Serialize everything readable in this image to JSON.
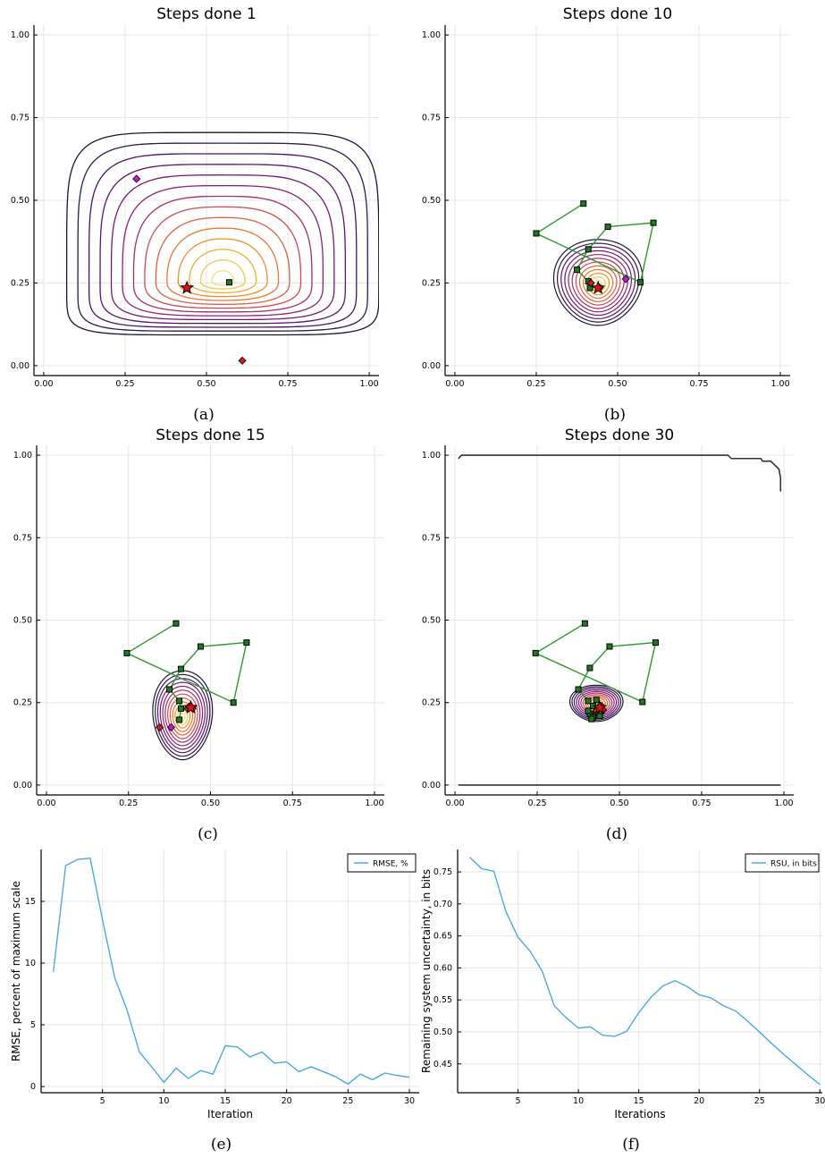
{
  "chart_data": [
    {
      "id": "a",
      "type": "contour",
      "title": "Steps done 1",
      "caption": "(a)",
      "xlim": [
        -0.03,
        1.03
      ],
      "ylim": [
        -0.03,
        1.03
      ],
      "xticks": [
        "0.00",
        "0.25",
        "0.50",
        "0.75",
        "1.00"
      ],
      "yticks": [
        "0.00",
        "0.25",
        "0.50",
        "0.75",
        "1.00"
      ],
      "grid": true,
      "contour": {
        "cx": 0.55,
        "cy": 0.255,
        "rx": 0.47,
        "ry": 0.36,
        "outer": 0.485,
        "n": 14,
        "shape": "box"
      },
      "path": [],
      "green_markers": [
        [
          0.57,
          0.252
        ]
      ],
      "red_diamonds": [
        [
          0.61,
          0.015
        ]
      ],
      "magenta_diamonds": [
        [
          0.285,
          0.565
        ]
      ],
      "star": [
        0.44,
        0.235
      ]
    },
    {
      "id": "b",
      "type": "contour",
      "title": "Steps done 10",
      "caption": "(b)",
      "xlim": [
        -0.03,
        1.03
      ],
      "ylim": [
        -0.03,
        1.03
      ],
      "xticks": [
        "0.00",
        "0.25",
        "0.50",
        "0.75",
        "1.00"
      ],
      "yticks": [
        "0.00",
        "0.25",
        "0.50",
        "0.75",
        "1.00"
      ],
      "grid": true,
      "contour": {
        "cx": 0.44,
        "cy": 0.245,
        "rx": 0.135,
        "ry": 0.13,
        "outer": 0.135,
        "n": 12,
        "shape": "drop"
      },
      "path": [
        [
          0.395,
          0.49
        ],
        [
          0.25,
          0.4
        ],
        [
          0.57,
          0.252
        ],
        [
          0.61,
          0.432
        ],
        [
          0.47,
          0.42
        ],
        [
          0.41,
          0.352
        ],
        [
          0.375,
          0.29
        ],
        [
          0.41,
          0.255
        ],
        [
          0.415,
          0.235
        ]
      ],
      "green_markers": [
        [
          0.395,
          0.49
        ],
        [
          0.25,
          0.4
        ],
        [
          0.57,
          0.252
        ],
        [
          0.61,
          0.432
        ],
        [
          0.47,
          0.42
        ],
        [
          0.41,
          0.352
        ],
        [
          0.375,
          0.29
        ],
        [
          0.41,
          0.255
        ],
        [
          0.415,
          0.235
        ]
      ],
      "red_diamonds": [
        [
          0.418,
          0.25
        ],
        [
          0.445,
          0.236
        ]
      ],
      "magenta_diamonds": [
        [
          0.525,
          0.262
        ]
      ],
      "star": [
        0.44,
        0.235
      ]
    },
    {
      "id": "c",
      "type": "contour",
      "title": "Steps done 15",
      "caption": "(c)",
      "xlim": [
        -0.03,
        1.03
      ],
      "ylim": [
        -0.03,
        1.03
      ],
      "xticks": [
        "0.00",
        "0.25",
        "0.50",
        "0.75",
        "1.00"
      ],
      "yticks": [
        "0.00",
        "0.25",
        "0.50",
        "0.75",
        "1.00"
      ],
      "grid": true,
      "contour": {
        "cx": 0.415,
        "cy": 0.205,
        "rx": 0.09,
        "ry": 0.135,
        "outer": 0.09,
        "n": 12,
        "shape": "drop"
      },
      "path": [
        [
          0.395,
          0.49
        ],
        [
          0.245,
          0.4
        ],
        [
          0.57,
          0.25
        ],
        [
          0.61,
          0.432
        ],
        [
          0.47,
          0.42
        ],
        [
          0.41,
          0.352
        ],
        [
          0.375,
          0.29
        ],
        [
          0.405,
          0.255
        ],
        [
          0.41,
          0.232
        ],
        [
          0.405,
          0.198
        ]
      ],
      "green_markers": [
        [
          0.395,
          0.49
        ],
        [
          0.245,
          0.4
        ],
        [
          0.57,
          0.25
        ],
        [
          0.61,
          0.432
        ],
        [
          0.47,
          0.42
        ],
        [
          0.41,
          0.352
        ],
        [
          0.375,
          0.29
        ],
        [
          0.405,
          0.255
        ],
        [
          0.41,
          0.232
        ],
        [
          0.405,
          0.198
        ]
      ],
      "red_diamonds": [
        [
          0.345,
          0.175
        ],
        [
          0.43,
          0.232
        ],
        [
          0.445,
          0.232
        ],
        [
          0.435,
          0.238
        ]
      ],
      "magenta_diamonds": [
        [
          0.38,
          0.175
        ]
      ],
      "star": [
        0.44,
        0.235
      ]
    },
    {
      "id": "d",
      "type": "contour",
      "title": "Steps done 30",
      "caption": "(d)",
      "xlim": [
        -0.03,
        1.03
      ],
      "ylim": [
        -0.03,
        1.03
      ],
      "xticks": [
        "0.00",
        "0.25",
        "0.50",
        "0.75",
        "1.00"
      ],
      "yticks": [
        "0.00",
        "0.25",
        "0.50",
        "0.75",
        "1.00"
      ],
      "grid": true,
      "contour": {
        "cx": 0.43,
        "cy": 0.245,
        "rx": 0.08,
        "ry": 0.055,
        "outer": 0.085,
        "n": 12,
        "shape": "drop"
      },
      "boundary": {
        "top": [
          [
            0.01,
            0.99
          ],
          [
            0.02,
            1.0
          ],
          [
            0.83,
            1.0
          ],
          [
            0.84,
            0.99
          ],
          [
            0.93,
            0.99
          ],
          [
            0.935,
            0.982
          ],
          [
            0.96,
            0.982
          ],
          [
            0.985,
            0.958
          ],
          [
            0.99,
            0.932
          ],
          [
            0.99,
            0.89
          ]
        ],
        "bottom": [
          [
            0.01,
            0.0
          ],
          [
            0.99,
            0.0
          ]
        ]
      },
      "path": [
        [
          0.395,
          0.49
        ],
        [
          0.245,
          0.4
        ],
        [
          0.57,
          0.252
        ],
        [
          0.61,
          0.432
        ],
        [
          0.47,
          0.42
        ],
        [
          0.41,
          0.355
        ],
        [
          0.375,
          0.29
        ],
        [
          0.405,
          0.255
        ],
        [
          0.42,
          0.24
        ],
        [
          0.43,
          0.22
        ],
        [
          0.41,
          0.215
        ]
      ],
      "green_markers": [
        [
          0.395,
          0.49
        ],
        [
          0.245,
          0.4
        ],
        [
          0.57,
          0.252
        ],
        [
          0.61,
          0.432
        ],
        [
          0.47,
          0.42
        ],
        [
          0.41,
          0.355
        ],
        [
          0.375,
          0.29
        ],
        [
          0.405,
          0.255
        ],
        [
          0.42,
          0.24
        ],
        [
          0.43,
          0.22
        ],
        [
          0.41,
          0.215
        ],
        [
          0.42,
          0.205
        ],
        [
          0.44,
          0.21
        ],
        [
          0.445,
          0.225
        ],
        [
          0.405,
          0.225
        ],
        [
          0.43,
          0.258
        ],
        [
          0.415,
          0.2
        ]
      ],
      "red_diamonds": [
        [
          0.435,
          0.235
        ],
        [
          0.445,
          0.24
        ],
        [
          0.43,
          0.225
        ],
        [
          0.45,
          0.228
        ]
      ],
      "magenta_diamonds": [],
      "star": [
        0.44,
        0.235
      ]
    },
    {
      "id": "e",
      "type": "line",
      "caption": "(e)",
      "xlabel": "Iteration",
      "ylabel": "RMSE, percent of maximum scale",
      "xlim": [
        0,
        30.8
      ],
      "ylim": [
        -0.5,
        19.2
      ],
      "xticks": [
        5,
        10,
        15,
        20,
        25,
        30
      ],
      "yticks": [
        0,
        5,
        10,
        15
      ],
      "grid": true,
      "legend": "top-right",
      "series": [
        {
          "name": "RMSE, %",
          "color": "#3da5e0",
          "x": [
            1,
            2,
            3,
            4,
            5,
            6,
            7,
            8,
            9,
            10,
            11,
            12,
            13,
            14,
            15,
            16,
            17,
            18,
            19,
            20,
            21,
            22,
            23,
            24,
            25,
            26,
            27,
            28,
            29,
            30
          ],
          "values": [
            9.3,
            17.9,
            18.4,
            18.5,
            13.5,
            8.8,
            6.2,
            2.8,
            1.6,
            0.35,
            1.5,
            0.65,
            1.3,
            1.0,
            3.3,
            3.2,
            2.4,
            2.8,
            1.9,
            2.0,
            1.2,
            1.6,
            1.2,
            0.8,
            0.2,
            1.0,
            0.55,
            1.1,
            0.9,
            0.75
          ]
        }
      ]
    },
    {
      "id": "f",
      "type": "line",
      "caption": "(f)",
      "xlabel": "Iterations",
      "ylabel": "Remaining system uncertainty, in bits",
      "xlim": [
        0,
        30.2
      ],
      "ylim": [
        0.405,
        0.785
      ],
      "xticks": [
        5,
        10,
        15,
        20,
        25,
        30
      ],
      "yticks": [
        0.45,
        0.5,
        0.55,
        0.6,
        0.65,
        0.7,
        0.75
      ],
      "grid": true,
      "legend": "top-right",
      "series": [
        {
          "name": "RSU, in bits",
          "color": "#3da5e0",
          "x": [
            1,
            2,
            3,
            4,
            5,
            6,
            7,
            8,
            9,
            10,
            11,
            12,
            13,
            14,
            15,
            16,
            17,
            18,
            19,
            20,
            21,
            22,
            23,
            24,
            25,
            26,
            27,
            28,
            29,
            30
          ],
          "values": [
            0.773,
            0.755,
            0.751,
            0.688,
            0.648,
            0.626,
            0.595,
            0.541,
            0.522,
            0.506,
            0.508,
            0.495,
            0.493,
            0.501,
            0.53,
            0.554,
            0.572,
            0.58,
            0.571,
            0.558,
            0.553,
            0.541,
            0.533,
            0.517,
            0.5,
            0.482,
            0.465,
            0.449,
            0.433,
            0.418
          ]
        }
      ]
    }
  ]
}
